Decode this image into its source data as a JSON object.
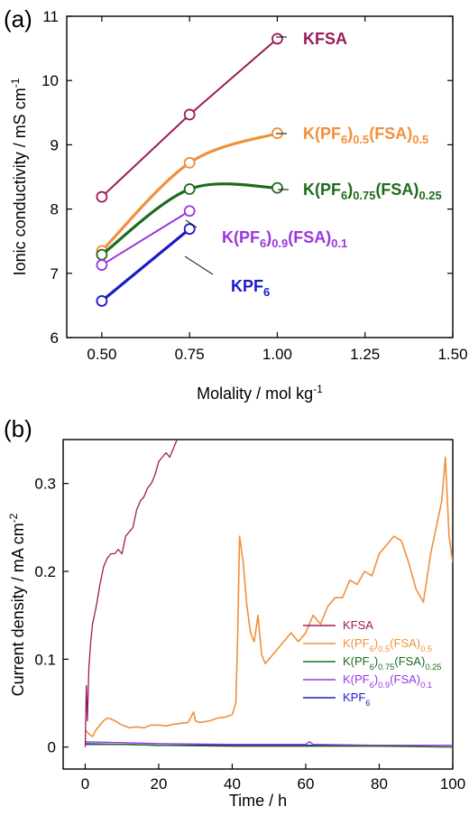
{
  "chart_data": [
    {
      "type": "line",
      "panel_label": "(a)",
      "xlabel": "Molality / mol kg",
      "xlabel_sup": "-1",
      "ylabel": "Ionic conductivity / mS cm",
      "ylabel_sup": "-1",
      "xlim": [
        0.4,
        1.5
      ],
      "ylim": [
        6,
        11
      ],
      "xticks": [
        "0.50",
        "0.75",
        "1.00",
        "1.25",
        "1.50"
      ],
      "xtick_values": [
        0.5,
        0.75,
        1.0,
        1.25,
        1.5
      ],
      "yticks": [
        "6",
        "7",
        "8",
        "9",
        "10",
        "11"
      ],
      "ytick_values": [
        6,
        7,
        8,
        9,
        10,
        11
      ],
      "series": [
        {
          "name": "KFSA",
          "color": "#9b1b5a",
          "x": [
            0.5,
            0.75,
            1.0
          ],
          "y": [
            8.19,
            9.47,
            10.65
          ],
          "curve": "linear"
        },
        {
          "name": "K(PF6)0.5(FSA)0.5",
          "color": "#f0903a",
          "x": [
            0.5,
            0.75,
            1.0
          ],
          "y": [
            7.35,
            8.72,
            9.18
          ],
          "curve": "smooth"
        },
        {
          "name": "K(PF6)0.75(FSA)0.25",
          "color": "#1e6b1e",
          "x": [
            0.5,
            0.75,
            1.0
          ],
          "y": [
            7.29,
            8.31,
            8.33
          ],
          "curve": "smooth"
        },
        {
          "name": "K(PF6)0.9(FSA)0.1",
          "color": "#9a35e0",
          "x": [
            0.5,
            0.75
          ],
          "y": [
            7.13,
            7.97
          ],
          "curve": "linear"
        },
        {
          "name": "KPF6",
          "color": "#1a1acc",
          "x": [
            0.5,
            0.75
          ],
          "y": [
            6.57,
            7.69
          ],
          "curve": "linear"
        }
      ],
      "annotations": [
        {
          "parts": [
            {
              "t": "KFSA"
            }
          ],
          "color": "#9b1b5a"
        },
        {
          "parts": [
            {
              "t": "K(PF"
            },
            {
              "t": "6",
              "s": "sub"
            },
            {
              "t": ")"
            },
            {
              "t": "0.5",
              "s": "sub"
            },
            {
              "t": "(FSA)"
            },
            {
              "t": "0.5",
              "s": "sub"
            }
          ],
          "color": "#f0903a"
        },
        {
          "parts": [
            {
              "t": "K(PF"
            },
            {
              "t": "6",
              "s": "sub"
            },
            {
              "t": ")"
            },
            {
              "t": "0.75",
              "s": "sub"
            },
            {
              "t": "(FSA)"
            },
            {
              "t": "0.25",
              "s": "sub"
            }
          ],
          "color": "#1e6b1e"
        },
        {
          "parts": [
            {
              "t": "K(PF"
            },
            {
              "t": "6",
              "s": "sub"
            },
            {
              "t": ")"
            },
            {
              "t": "0.9",
              "s": "sub"
            },
            {
              "t": "(FSA)"
            },
            {
              "t": "0.1",
              "s": "sub"
            }
          ],
          "color": "#9a35e0"
        },
        {
          "parts": [
            {
              "t": "KPF"
            },
            {
              "t": "6",
              "s": "sub"
            }
          ],
          "color": "#1a1acc"
        }
      ]
    },
    {
      "type": "line",
      "panel_label": "(b)",
      "xlabel": "Time / h",
      "ylabel": "Current density / mA cm",
      "ylabel_sup": "-2",
      "xlim": [
        -6,
        100
      ],
      "ylim": [
        -0.025,
        0.35
      ],
      "xticks": [
        "0",
        "20",
        "40",
        "60",
        "80",
        "100"
      ],
      "xtick_values": [
        0,
        20,
        40,
        60,
        80,
        100
      ],
      "yticks": [
        "0",
        "0.1",
        "0.2",
        "0.3"
      ],
      "ytick_values": [
        0,
        0.1,
        0.2,
        0.3
      ],
      "series": [
        {
          "name": "KFSA",
          "color": "#9b1b5a",
          "x": [
            0,
            0.3,
            0.6,
            1,
            1.5,
            2,
            3,
            4,
            5,
            6,
            7,
            8,
            9,
            10,
            11,
            12,
            13,
            14,
            15,
            16,
            17,
            18,
            19,
            20,
            21,
            22,
            23,
            24,
            25,
            26,
            27
          ],
          "y": [
            0.0,
            0.07,
            0.03,
            0.09,
            0.12,
            0.14,
            0.16,
            0.185,
            0.205,
            0.215,
            0.22,
            0.22,
            0.225,
            0.22,
            0.24,
            0.245,
            0.25,
            0.27,
            0.28,
            0.285,
            0.295,
            0.3,
            0.31,
            0.325,
            0.33,
            0.335,
            0.33,
            0.34,
            0.35,
            0.36,
            0.37
          ]
        },
        {
          "name": "K(PF6)0.5(FSA)0.5",
          "color": "#f0903a",
          "x": [
            0,
            1,
            2,
            3,
            4,
            5,
            6,
            7,
            8,
            10,
            12,
            14,
            16,
            18,
            20,
            22,
            24,
            26,
            28,
            29.5,
            30,
            31,
            34,
            36,
            38,
            40,
            41,
            41.5,
            42,
            43,
            44,
            45,
            46,
            47,
            48,
            49,
            50,
            52,
            54,
            56,
            58,
            60,
            62,
            64,
            66,
            68,
            70,
            72,
            74,
            76,
            78,
            80,
            82,
            84,
            86,
            88,
            90,
            92,
            94,
            96,
            97,
            98,
            99,
            100
          ],
          "y": [
            0.02,
            0.015,
            0.012,
            0.02,
            0.025,
            0.03,
            0.033,
            0.032,
            0.03,
            0.025,
            0.022,
            0.023,
            0.022,
            0.025,
            0.025,
            0.024,
            0.026,
            0.027,
            0.028,
            0.04,
            0.03,
            0.028,
            0.03,
            0.033,
            0.034,
            0.037,
            0.05,
            0.13,
            0.24,
            0.21,
            0.16,
            0.13,
            0.12,
            0.15,
            0.105,
            0.095,
            0.1,
            0.11,
            0.12,
            0.13,
            0.12,
            0.13,
            0.15,
            0.14,
            0.16,
            0.17,
            0.17,
            0.19,
            0.185,
            0.2,
            0.195,
            0.22,
            0.23,
            0.24,
            0.235,
            0.21,
            0.18,
            0.165,
            0.22,
            0.26,
            0.28,
            0.33,
            0.24,
            0.21
          ]
        },
        {
          "name": "K(PF6)0.75(FSA)0.25",
          "color": "#1e6b1e",
          "x": [
            0,
            10,
            20,
            40,
            60,
            80,
            100
          ],
          "y": [
            0.004,
            0.003,
            0.002,
            0.001,
            0.001,
            0.001,
            0.0
          ]
        },
        {
          "name": "K(PF6)0.9(FSA)0.1",
          "color": "#9a35e0",
          "x": [
            0,
            10,
            20,
            40,
            60,
            61,
            62,
            80,
            100
          ],
          "y": [
            0.006,
            0.005,
            0.004,
            0.003,
            0.003,
            0.006,
            0.003,
            0.002,
            0.002
          ]
        },
        {
          "name": "KPF6",
          "color": "#1a1acc",
          "x": [
            0,
            10,
            20,
            40,
            60,
            80,
            100
          ],
          "y": [
            0.003,
            0.003,
            0.002,
            0.002,
            0.002,
            0.002,
            0.002
          ]
        }
      ],
      "legend": [
        {
          "parts": [
            {
              "t": "KFSA"
            }
          ],
          "color": "#9b1b5a"
        },
        {
          "parts": [
            {
              "t": "K(PF"
            },
            {
              "t": "6",
              "s": "sub"
            },
            {
              "t": ")"
            },
            {
              "t": "0.5",
              "s": "sub"
            },
            {
              "t": "(FSA)"
            },
            {
              "t": "0.5",
              "s": "sub"
            }
          ],
          "color": "#f0903a"
        },
        {
          "parts": [
            {
              "t": "K(PF"
            },
            {
              "t": "6",
              "s": "sub"
            },
            {
              "t": ")"
            },
            {
              "t": "0.75",
              "s": "sub"
            },
            {
              "t": "(FSA)"
            },
            {
              "t": "0.25",
              "s": "sub"
            }
          ],
          "color": "#1e6b1e"
        },
        {
          "parts": [
            {
              "t": "K(PF"
            },
            {
              "t": "6",
              "s": "sub"
            },
            {
              "t": ")"
            },
            {
              "t": "0.9",
              "s": "sub"
            },
            {
              "t": "(FSA)"
            },
            {
              "t": "0.1",
              "s": "sub"
            }
          ],
          "color": "#9a35e0"
        },
        {
          "parts": [
            {
              "t": "KPF"
            },
            {
              "t": "6",
              "s": "sub"
            }
          ],
          "color": "#1a1acc"
        }
      ],
      "legend_position": "right-middle"
    }
  ]
}
